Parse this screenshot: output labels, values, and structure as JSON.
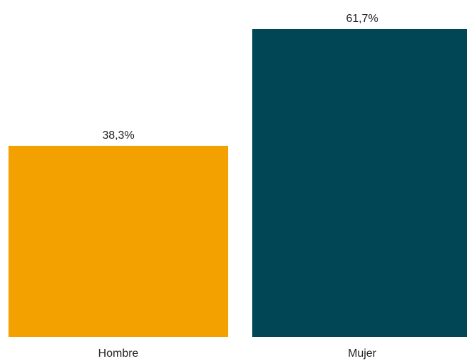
{
  "chart_data": {
    "type": "bar",
    "title": "",
    "xlabel": "",
    "ylabel": "",
    "categories": [
      "Hombre",
      "Mujer"
    ],
    "values": [
      38.3,
      61.7
    ],
    "value_labels": [
      "38,3%",
      "61,7%"
    ],
    "ylim": [
      0,
      61.7
    ],
    "colors": [
      "#F2A100",
      "#004655"
    ],
    "grid": false,
    "legend": "none"
  }
}
